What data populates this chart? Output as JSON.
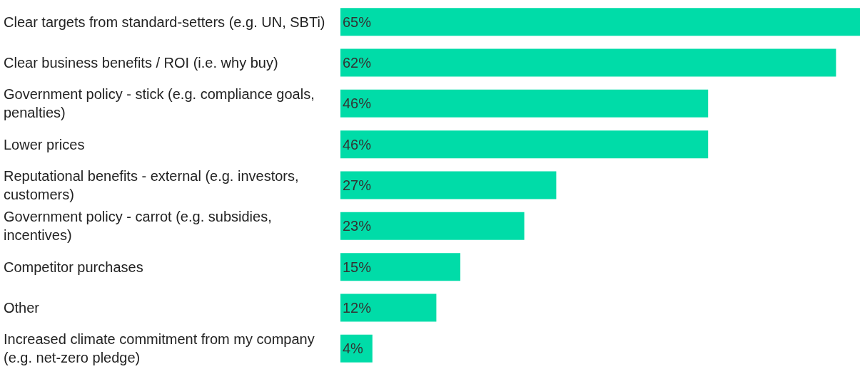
{
  "chart_data": {
    "type": "bar",
    "orientation": "horizontal",
    "categories": [
      "Clear targets from standard-setters (e.g. UN, SBTi)",
      "Clear business benefits / ROI (i.e. why buy)",
      "Government policy - stick (e.g. compliance goals, penalties)",
      "Lower prices",
      "Reputational benefits - external (e.g. investors, customers)",
      "Government policy - carrot (e.g. subsidies, incentives)",
      "Competitor purchases",
      "Other",
      "Increased climate commitment from my company (e.g. net-zero pledge)"
    ],
    "values": [
      65,
      62,
      46,
      46,
      27,
      23,
      15,
      12,
      4
    ],
    "value_labels": [
      "65%",
      "62%",
      "46%",
      "46%",
      "27%",
      "23%",
      "15%",
      "12%",
      "4%"
    ],
    "color": "#00dca8",
    "grid": false,
    "legend": false
  }
}
